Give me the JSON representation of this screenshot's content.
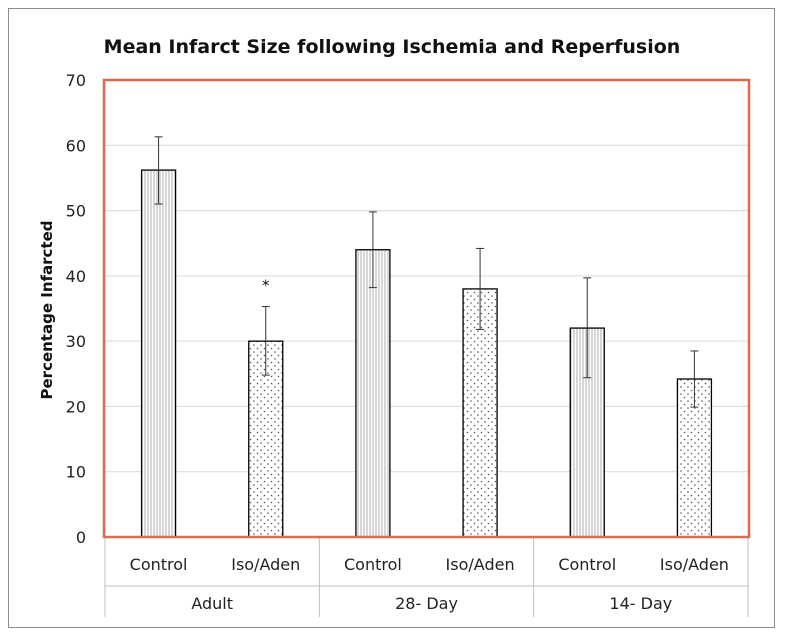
{
  "colors": {
    "highlight_border": "#e0694b",
    "gridline": "#d9d9d9",
    "bar_outline": "#000000",
    "axis_text": "#222222"
  },
  "chart_data": {
    "type": "bar",
    "title": "Mean Infarct Size following Ischemia and Reperfusion",
    "xlabel": "",
    "ylabel": "Percentage Infarcted",
    "ylim": [
      0,
      70
    ],
    "yticks": [
      "0",
      "10",
      "20",
      "30",
      "40",
      "50",
      "60",
      "70"
    ],
    "grid": true,
    "groups": [
      "Adult",
      "28- Day",
      "14- Day"
    ],
    "categories": [
      "Control",
      "Iso/Aden",
      "Control",
      "Iso/Aden",
      "Control",
      "Iso/Aden"
    ],
    "bars": [
      {
        "group": "Adult",
        "label": "Control",
        "value": 56.2,
        "err_low": 51.0,
        "err_high": 61.3,
        "pattern": "vertical-hatch",
        "annotation": ""
      },
      {
        "group": "Adult",
        "label": "Iso/Aden",
        "value": 30.0,
        "err_low": 24.8,
        "err_high": 35.3,
        "pattern": "dots",
        "annotation": "*"
      },
      {
        "group": "28- Day",
        "label": "Control",
        "value": 44.0,
        "err_low": 38.2,
        "err_high": 49.8,
        "pattern": "vertical-hatch",
        "annotation": ""
      },
      {
        "group": "28- Day",
        "label": "Iso/Aden",
        "value": 38.0,
        "err_low": 31.8,
        "err_high": 44.2,
        "pattern": "dots",
        "annotation": ""
      },
      {
        "group": "14- Day",
        "label": "Control",
        "value": 32.0,
        "err_low": 24.4,
        "err_high": 39.7,
        "pattern": "vertical-hatch",
        "annotation": ""
      },
      {
        "group": "14- Day",
        "label": "Iso/Aden",
        "value": 24.2,
        "err_low": 19.9,
        "err_high": 28.5,
        "pattern": "dots",
        "annotation": ""
      }
    ]
  }
}
